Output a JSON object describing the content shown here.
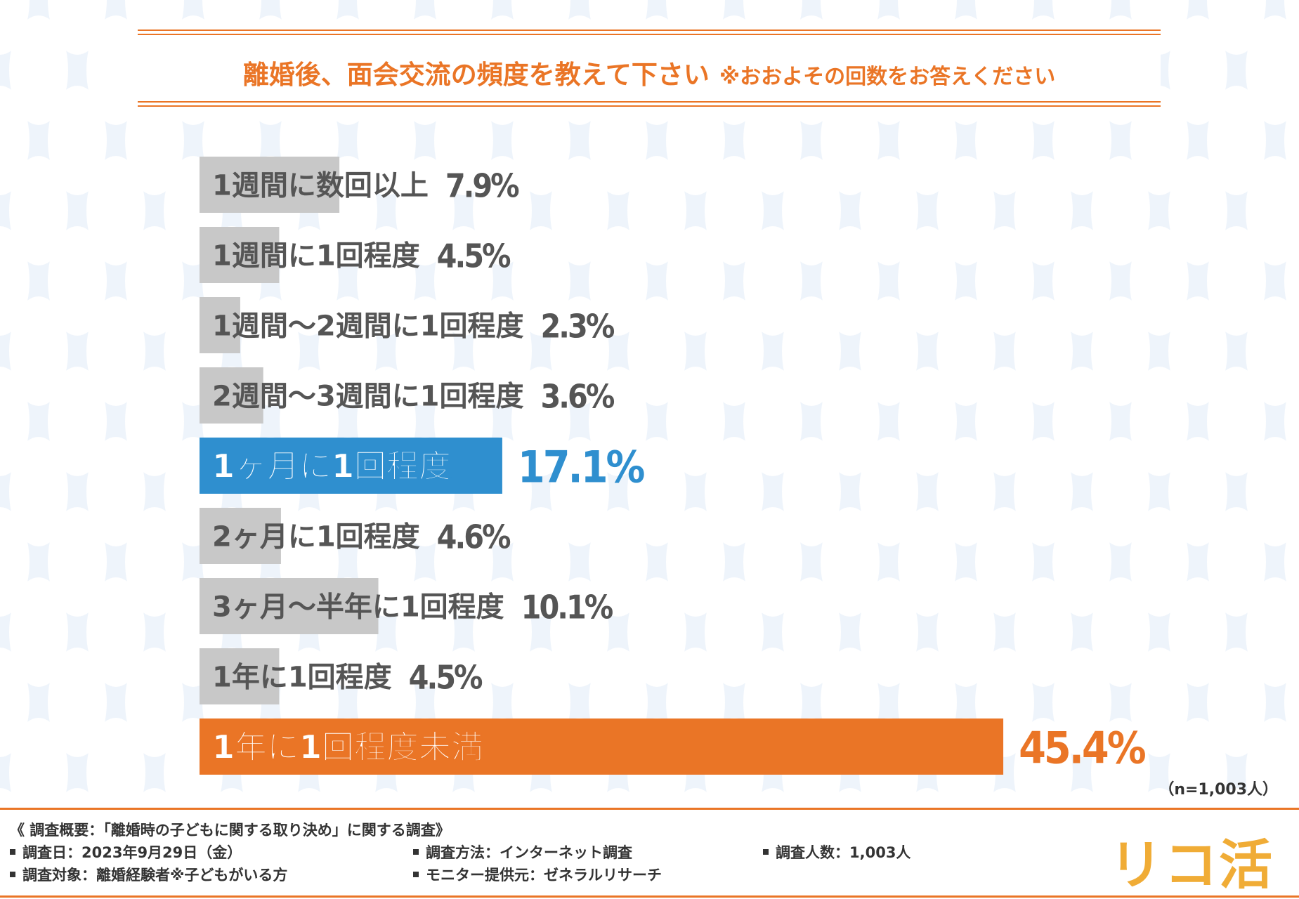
{
  "title": {
    "main": "離婚後、面会交流の頻度を教えて下さい",
    "note": "※おおよその回数をお答えください"
  },
  "chart_data": {
    "type": "bar",
    "orientation": "horizontal",
    "categories": [
      "1週間に数回以上",
      "1週間に1回程度",
      "1週間～2週間に1回程度",
      "2週間～3週間に1回程度",
      "1ヶ月に1回程度",
      "2ヶ月に1回程度",
      "3ヶ月～半年に1回程度",
      "1年に1回程度",
      "1年に1回程度未満"
    ],
    "values": [
      7.9,
      4.5,
      2.3,
      3.6,
      17.1,
      4.6,
      10.1,
      4.5,
      45.4
    ],
    "value_labels": [
      "7.9%",
      "4.5%",
      "2.3%",
      "3.6%",
      "17.1%",
      "4.6%",
      "10.1%",
      "4.5%",
      "45.4%"
    ],
    "highlight": [
      "gray",
      "gray",
      "gray",
      "gray",
      "blue",
      "gray",
      "gray",
      "gray",
      "orange"
    ],
    "colors": {
      "gray": "#c8c8c8",
      "blue": "#2f8fcf",
      "orange": "#ea7526",
      "text": "#555555"
    },
    "unit": "%"
  },
  "sample_note": "（n=1,003人）",
  "footer": {
    "survey_title": "《 調査概要：「離婚時の子どもに関する取り決め」に関する調査》",
    "items": [
      "調査日：2023年9月29日（金）",
      "調査方法：インターネット調査",
      "調査人数：1,003人",
      "調査対象：離婚経験者※子どもがいる方",
      "モニター提供元：ゼネラルリサーチ"
    ],
    "logo": "リコ活"
  }
}
